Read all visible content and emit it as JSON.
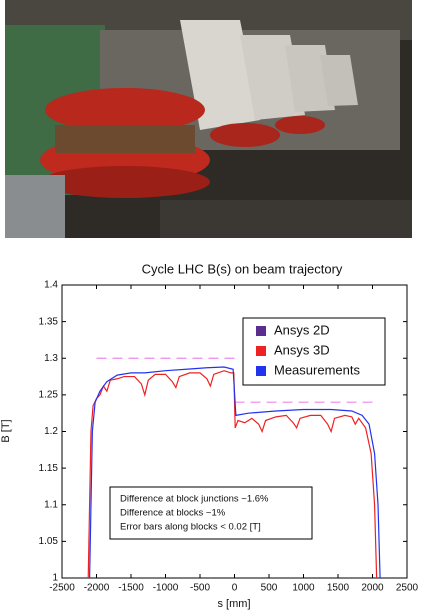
{
  "chart_data": {
    "type": "line",
    "title": "Cycle LHC B(s) on beam trajectory",
    "x_label": "s [mm]",
    "y_label": "B [T]",
    "xlim": [
      -2500,
      2500
    ],
    "xticks": [
      -2500,
      -2000,
      -1500,
      -1000,
      -500,
      0,
      500,
      1000,
      1500,
      2000,
      2500
    ],
    "ylim": [
      1,
      1.4
    ],
    "yticks": [
      1,
      1.05,
      1.1,
      1.15,
      1.2,
      1.25,
      1.3,
      1.35,
      1.4
    ],
    "grid": false,
    "legend": "upper right",
    "series": [
      {
        "name": "Ansys 2D",
        "color": "#5b2d8e",
        "line_color": "#ee88ee",
        "line_style": "dashed",
        "x": [
          -2000,
          0,
          0,
          0,
          2000
        ],
        "values": [
          1.3,
          1.3,
          null,
          1.24,
          1.24
        ]
      },
      {
        "name": "Ansys 3D",
        "color": "#ee2222",
        "line_style": "solid",
        "x": [
          -2120,
          -2080,
          -2050,
          -2000,
          -1950,
          -1900,
          -1850,
          -1800,
          -1700,
          -1600,
          -1450,
          -1350,
          -1300,
          -1250,
          -1150,
          -1000,
          -900,
          -850,
          -800,
          -650,
          -500,
          -400,
          -350,
          -300,
          -150,
          -50,
          -10,
          10,
          50,
          150,
          250,
          350,
          400,
          450,
          600,
          750,
          850,
          900,
          950,
          1100,
          1250,
          1350,
          1400,
          1450,
          1600,
          1700,
          1750,
          1800,
          1900,
          1980,
          2030,
          2060
        ],
        "values": [
          1.0,
          1.2,
          1.235,
          1.245,
          1.25,
          1.262,
          1.255,
          1.27,
          1.272,
          1.275,
          1.275,
          1.265,
          1.25,
          1.27,
          1.278,
          1.278,
          1.268,
          1.26,
          1.275,
          1.28,
          1.28,
          1.272,
          1.262,
          1.278,
          1.283,
          1.28,
          1.28,
          1.205,
          1.215,
          1.212,
          1.218,
          1.21,
          1.2,
          1.215,
          1.22,
          1.222,
          1.212,
          1.205,
          1.218,
          1.222,
          1.222,
          1.21,
          1.2,
          1.218,
          1.222,
          1.22,
          1.21,
          1.218,
          1.205,
          1.17,
          1.1,
          1.0
        ]
      },
      {
        "name": "Measurements",
        "color": "#2233ee",
        "line_style": "solid",
        "x": [
          -2100,
          -2060,
          -2020,
          -1950,
          -1850,
          -1700,
          -1500,
          -1300,
          -1000,
          -700,
          -400,
          -150,
          -20,
          20,
          200,
          600,
          1000,
          1400,
          1700,
          1850,
          1950,
          2030,
          2080,
          2110
        ],
        "values": [
          1.0,
          1.2,
          1.24,
          1.255,
          1.268,
          1.277,
          1.28,
          1.28,
          1.283,
          1.285,
          1.287,
          1.288,
          1.285,
          1.222,
          1.225,
          1.228,
          1.23,
          1.23,
          1.228,
          1.222,
          1.21,
          1.17,
          1.1,
          1.0
        ]
      }
    ],
    "annotation": [
      "Difference at block junctions  ~1.6%",
      "Difference at blocks   ~1%",
      "Error bars along blocks < 0.02 [T]"
    ]
  }
}
